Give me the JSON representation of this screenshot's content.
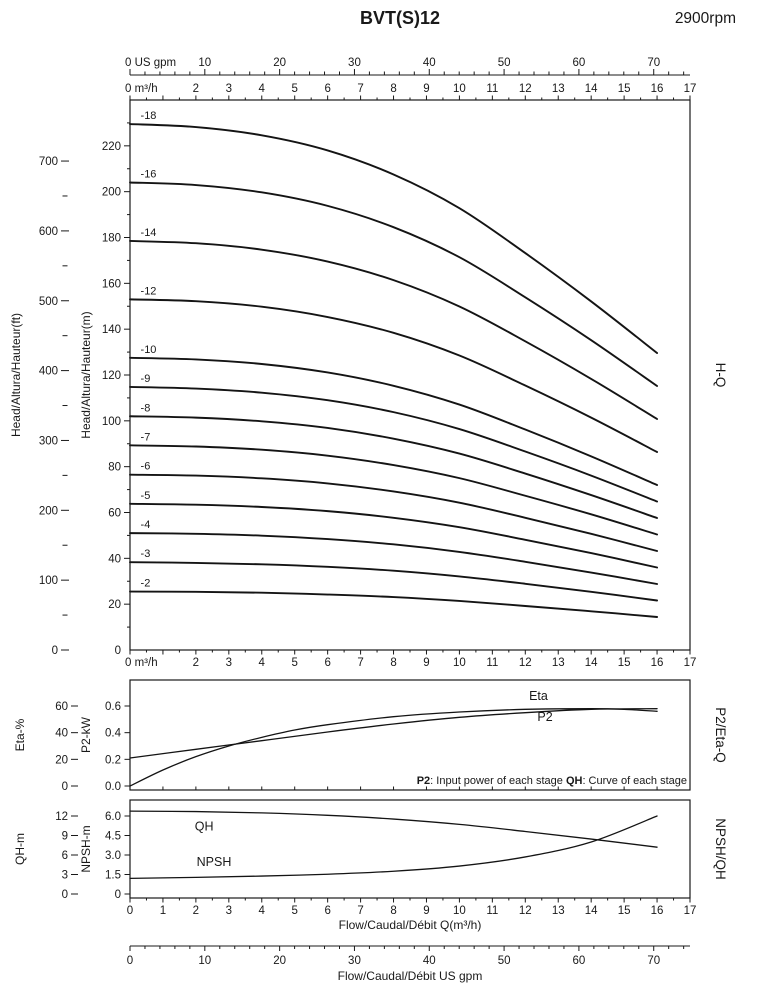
{
  "title": "BVT(S)12",
  "rpm": "2900rpm",
  "side_labels": {
    "hq": "H-Q",
    "p2eta": "P2/Eta-Q",
    "npshqh": "NPSH/QH"
  },
  "x_axes": {
    "gpm_top": {
      "zero_label": "0 US gpm",
      "tick_values": [
        10,
        20,
        30,
        40,
        50,
        60,
        70
      ]
    },
    "m3h_top": {
      "zero_label": "0 m³/h",
      "tick_values": [
        2,
        3,
        4,
        5,
        6,
        7,
        8,
        9,
        10,
        11,
        12,
        13,
        14,
        15,
        16,
        17
      ]
    },
    "m3h_mid": {
      "zero_label": "0 m³/h",
      "tick_values": [
        2,
        3,
        4,
        5,
        6,
        7,
        8,
        9,
        10,
        11,
        12,
        13,
        14,
        15,
        16,
        17
      ]
    },
    "m3h_bottom": {
      "tick_values": [
        0,
        1,
        2,
        3,
        4,
        5,
        6,
        7,
        8,
        9,
        10,
        11,
        12,
        13,
        14,
        15,
        16,
        17
      ],
      "title": "Flow/Caudal/Débit Q(m³/h)"
    },
    "gpm_bottom": {
      "tick_values": [
        0,
        10,
        20,
        30,
        40,
        50,
        60,
        70
      ],
      "title": "Flow/Caudal/Débit  US gpm"
    }
  },
  "chart_data": [
    {
      "id": "hq",
      "type": "line",
      "panel": "H-Q",
      "x_unit": "m³/h",
      "xlim": [
        0,
        17
      ],
      "ylim": [
        0,
        240
      ],
      "ylabel_outer": "Head/Altura/Hauteur(ft)",
      "ylabel_inner": "Head/Altura/Hauteur(m)",
      "yticks_m": [
        0,
        20,
        40,
        60,
        80,
        100,
        120,
        140,
        160,
        180,
        200,
        220
      ],
      "yticks_ft": [
        0,
        100,
        200,
        300,
        400,
        500,
        600,
        700
      ],
      "x": [
        0,
        2,
        4,
        6,
        8,
        10,
        12,
        14,
        16
      ],
      "series": [
        {
          "name": "-18",
          "values": [
            229.5,
            228.2,
            224.6,
            218.0,
            207.5,
            192.8,
            173.2,
            152.1,
            129.6
          ]
        },
        {
          "name": "-16",
          "values": [
            204.0,
            202.9,
            199.7,
            193.8,
            184.5,
            171.4,
            153.9,
            135.2,
            115.2
          ]
        },
        {
          "name": "-14",
          "values": [
            178.5,
            177.5,
            174.7,
            169.5,
            161.4,
            149.9,
            134.7,
            118.3,
            100.8
          ]
        },
        {
          "name": "-12",
          "values": [
            153.0,
            152.2,
            149.8,
            145.3,
            138.4,
            128.5,
            115.4,
            101.4,
            86.4
          ]
        },
        {
          "name": "-10",
          "values": [
            127.5,
            126.8,
            124.8,
            121.1,
            115.3,
            107.1,
            96.2,
            84.5,
            72.0
          ]
        },
        {
          "name": "-9",
          "values": [
            114.8,
            114.1,
            112.3,
            109.0,
            103.8,
            96.4,
            86.6,
            76.1,
            64.8
          ]
        },
        {
          "name": "-8",
          "values": [
            102.0,
            101.4,
            99.8,
            96.9,
            92.2,
            85.7,
            77.0,
            67.6,
            57.6
          ]
        },
        {
          "name": "-7",
          "values": [
            89.3,
            88.8,
            87.4,
            84.8,
            80.7,
            75.0,
            67.3,
            59.2,
            50.4
          ]
        },
        {
          "name": "-6",
          "values": [
            76.5,
            76.1,
            74.9,
            72.7,
            69.2,
            64.3,
            57.7,
            50.7,
            43.2
          ]
        },
        {
          "name": "-5",
          "values": [
            63.8,
            63.4,
            62.4,
            60.6,
            57.7,
            53.6,
            48.1,
            42.3,
            36.0
          ]
        },
        {
          "name": "-4",
          "values": [
            51.0,
            50.7,
            49.9,
            48.4,
            46.1,
            42.8,
            38.5,
            33.8,
            28.8
          ]
        },
        {
          "name": "-3",
          "values": [
            38.3,
            38.0,
            37.4,
            36.3,
            34.6,
            32.1,
            28.9,
            25.4,
            21.6
          ]
        },
        {
          "name": "-2",
          "values": [
            25.5,
            25.4,
            25.0,
            24.2,
            23.1,
            21.4,
            19.2,
            16.9,
            14.4
          ]
        }
      ]
    },
    {
      "id": "p2eta",
      "type": "line",
      "panel": "P2/Eta-Q",
      "ylabel_outer": "Eta-%",
      "ylabel_inner": "P2-kW",
      "eta_tick_labels": [
        "0",
        "20",
        "40",
        "60"
      ],
      "p2_tick_labels": [
        "0.0",
        "0.2",
        "0.4",
        "0.6"
      ],
      "tick_kw_values": [
        0,
        0.2,
        0.4,
        0.6
      ],
      "series": [
        {
          "name": "Eta",
          "axis": "eta",
          "x": [
            0,
            1,
            2,
            3,
            4,
            5,
            6,
            8,
            10,
            12,
            14,
            15,
            16
          ],
          "values": [
            0,
            12,
            22,
            30,
            36.5,
            42,
            46,
            52,
            55.5,
            57.5,
            58,
            57.5,
            56
          ]
        },
        {
          "name": "P2",
          "axis": "p2",
          "x": [
            0,
            2,
            4,
            6,
            8,
            10,
            12,
            14,
            16
          ],
          "values": [
            0.21,
            0.275,
            0.34,
            0.405,
            0.465,
            0.515,
            0.55,
            0.575,
            0.58
          ]
        }
      ],
      "note": {
        "p2_label": "P2",
        "p2_text": ": Input power of each stage ",
        "qh_label": "QH",
        "qh_text": ": Curve of each stage"
      }
    },
    {
      "id": "npshqh",
      "type": "line",
      "panel": "NPSH/QH",
      "ylabel_outer": "QH-m",
      "ylabel_inner": "NPSH-m",
      "qh_tick_labels": [
        "0",
        "3",
        "6",
        "9",
        "12"
      ],
      "npsh_tick_labels": [
        "0",
        "1.5",
        "3.0",
        "4.5",
        "6.0"
      ],
      "tick_npsh_values": [
        0,
        1.5,
        3,
        4.5,
        6
      ],
      "series": [
        {
          "name": "QH",
          "axis": "qh",
          "x": [
            0,
            2,
            4,
            6,
            8,
            10,
            12,
            14,
            16
          ],
          "values": [
            12.75,
            12.68,
            12.48,
            12.11,
            11.53,
            10.71,
            9.62,
            8.45,
            7.2
          ]
        },
        {
          "name": "NPSH",
          "axis": "npsh",
          "x": [
            0,
            2,
            4,
            6,
            8,
            10,
            12,
            14,
            16
          ],
          "values": [
            1.2,
            1.28,
            1.38,
            1.52,
            1.75,
            2.15,
            2.85,
            4.0,
            6.0
          ]
        }
      ]
    }
  ]
}
